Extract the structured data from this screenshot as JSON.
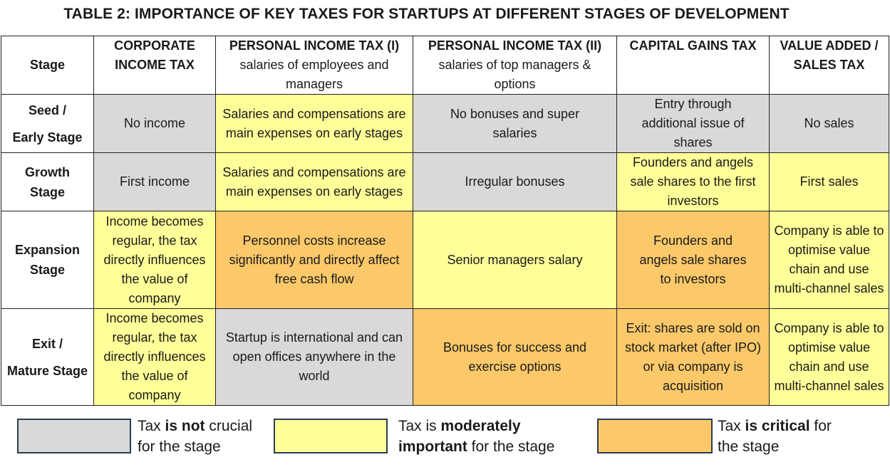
{
  "title": "TABLE 2: IMPORTANCE OF KEY TAXES FOR STARTUPS AT DIFFERENT STAGES OF DEVELOPMENT",
  "colors": {
    "not_crucial": "#d9d9d9",
    "moderate": "#ffff99",
    "critical": "#fbc96a"
  },
  "headers": {
    "stage": "Stage",
    "cit": "CORPORATE INCOME TAX",
    "pit1": {
      "main": "PERSONAL INCOME TAX (I)",
      "sub": "salaries of employees and managers"
    },
    "pit2": {
      "main": "PERSONAL INCOME TAX (II)",
      "sub": "salaries of top managers & options"
    },
    "cgt": "CAPITAL GAINS TAX",
    "vat": "VALUE ADDED / SALES TAX"
  },
  "rows": {
    "seed": {
      "stage_line1": "Seed /",
      "stage_line2": "Early Stage",
      "cit": "No income",
      "pit1": "Salaries and compensations are main expenses on early stages",
      "pit2": "No bonuses and super salaries",
      "cgt": "Entry through additional issue of shares",
      "vat": "No sales"
    },
    "growth": {
      "stage_line1": "Growth",
      "stage_line2": "Stage",
      "cit": "First income",
      "pit1": "Salaries and compensations are main expenses on early stages",
      "pit2": "Irregular bonuses",
      "cgt": "Founders and angels sale shares to the first investors",
      "vat": "First sales"
    },
    "expansion": {
      "stage_line1": "Expansion",
      "stage_line2": "Stage",
      "cit": "Income becomes regular, the tax directly influences the value of company",
      "pit1": "Personnel costs increase significantly and directly affect free cash flow",
      "pit2": "Senior managers salary",
      "cgt": "Founders and angels sale shares to investors",
      "vat": "Company is able to optimise value chain and use multi-channel sales"
    },
    "exit": {
      "stage_line1": "Exit /",
      "stage_line2": "Mature Stage",
      "cit": "Income becomes regular, the tax directly influences the value of company",
      "pit1": "Startup is international and can open offices anywhere in the world",
      "pit2": "Bonuses for success and exercise options",
      "cgt": "Exit: shares are sold on stock market (after IPO) or via company is acquisition",
      "vat": "Company is able to optimise value chain and use multi-channel sales"
    }
  },
  "legend": {
    "not_crucial": {
      "pre": "Tax ",
      "bold": "is not",
      "post1": " crucial",
      "line2": "for the stage"
    },
    "moderate": {
      "pre": "Tax is ",
      "bold": "moderately",
      "bold2": "important",
      "post2": " for the stage"
    },
    "critical": {
      "pre": "Tax ",
      "bold": "is critical",
      "post1": " for",
      "line2": "the stage"
    }
  }
}
